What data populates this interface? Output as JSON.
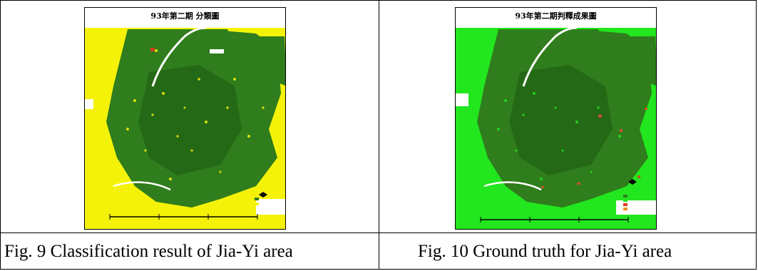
{
  "figures": [
    {
      "map_title": "93年第二期 分類圖",
      "caption": "Fig. 9 Classification result of Jia-Yi area",
      "colors": {
        "background": "#f5f20a",
        "forest": "#2f7d1c",
        "forest_dark": "#1c5a12",
        "river": "#ffffff",
        "marker": "#d23a1a"
      }
    },
    {
      "map_title": "93年第二期判釋成果圖",
      "caption": "Fig. 10 Ground truth for Jia-Yi area",
      "colors": {
        "background": "#22e61e",
        "forest": "#2f7d1c",
        "forest_dark": "#1c5a12",
        "river": "#ffffff",
        "marker": "#c8502a"
      }
    }
  ]
}
